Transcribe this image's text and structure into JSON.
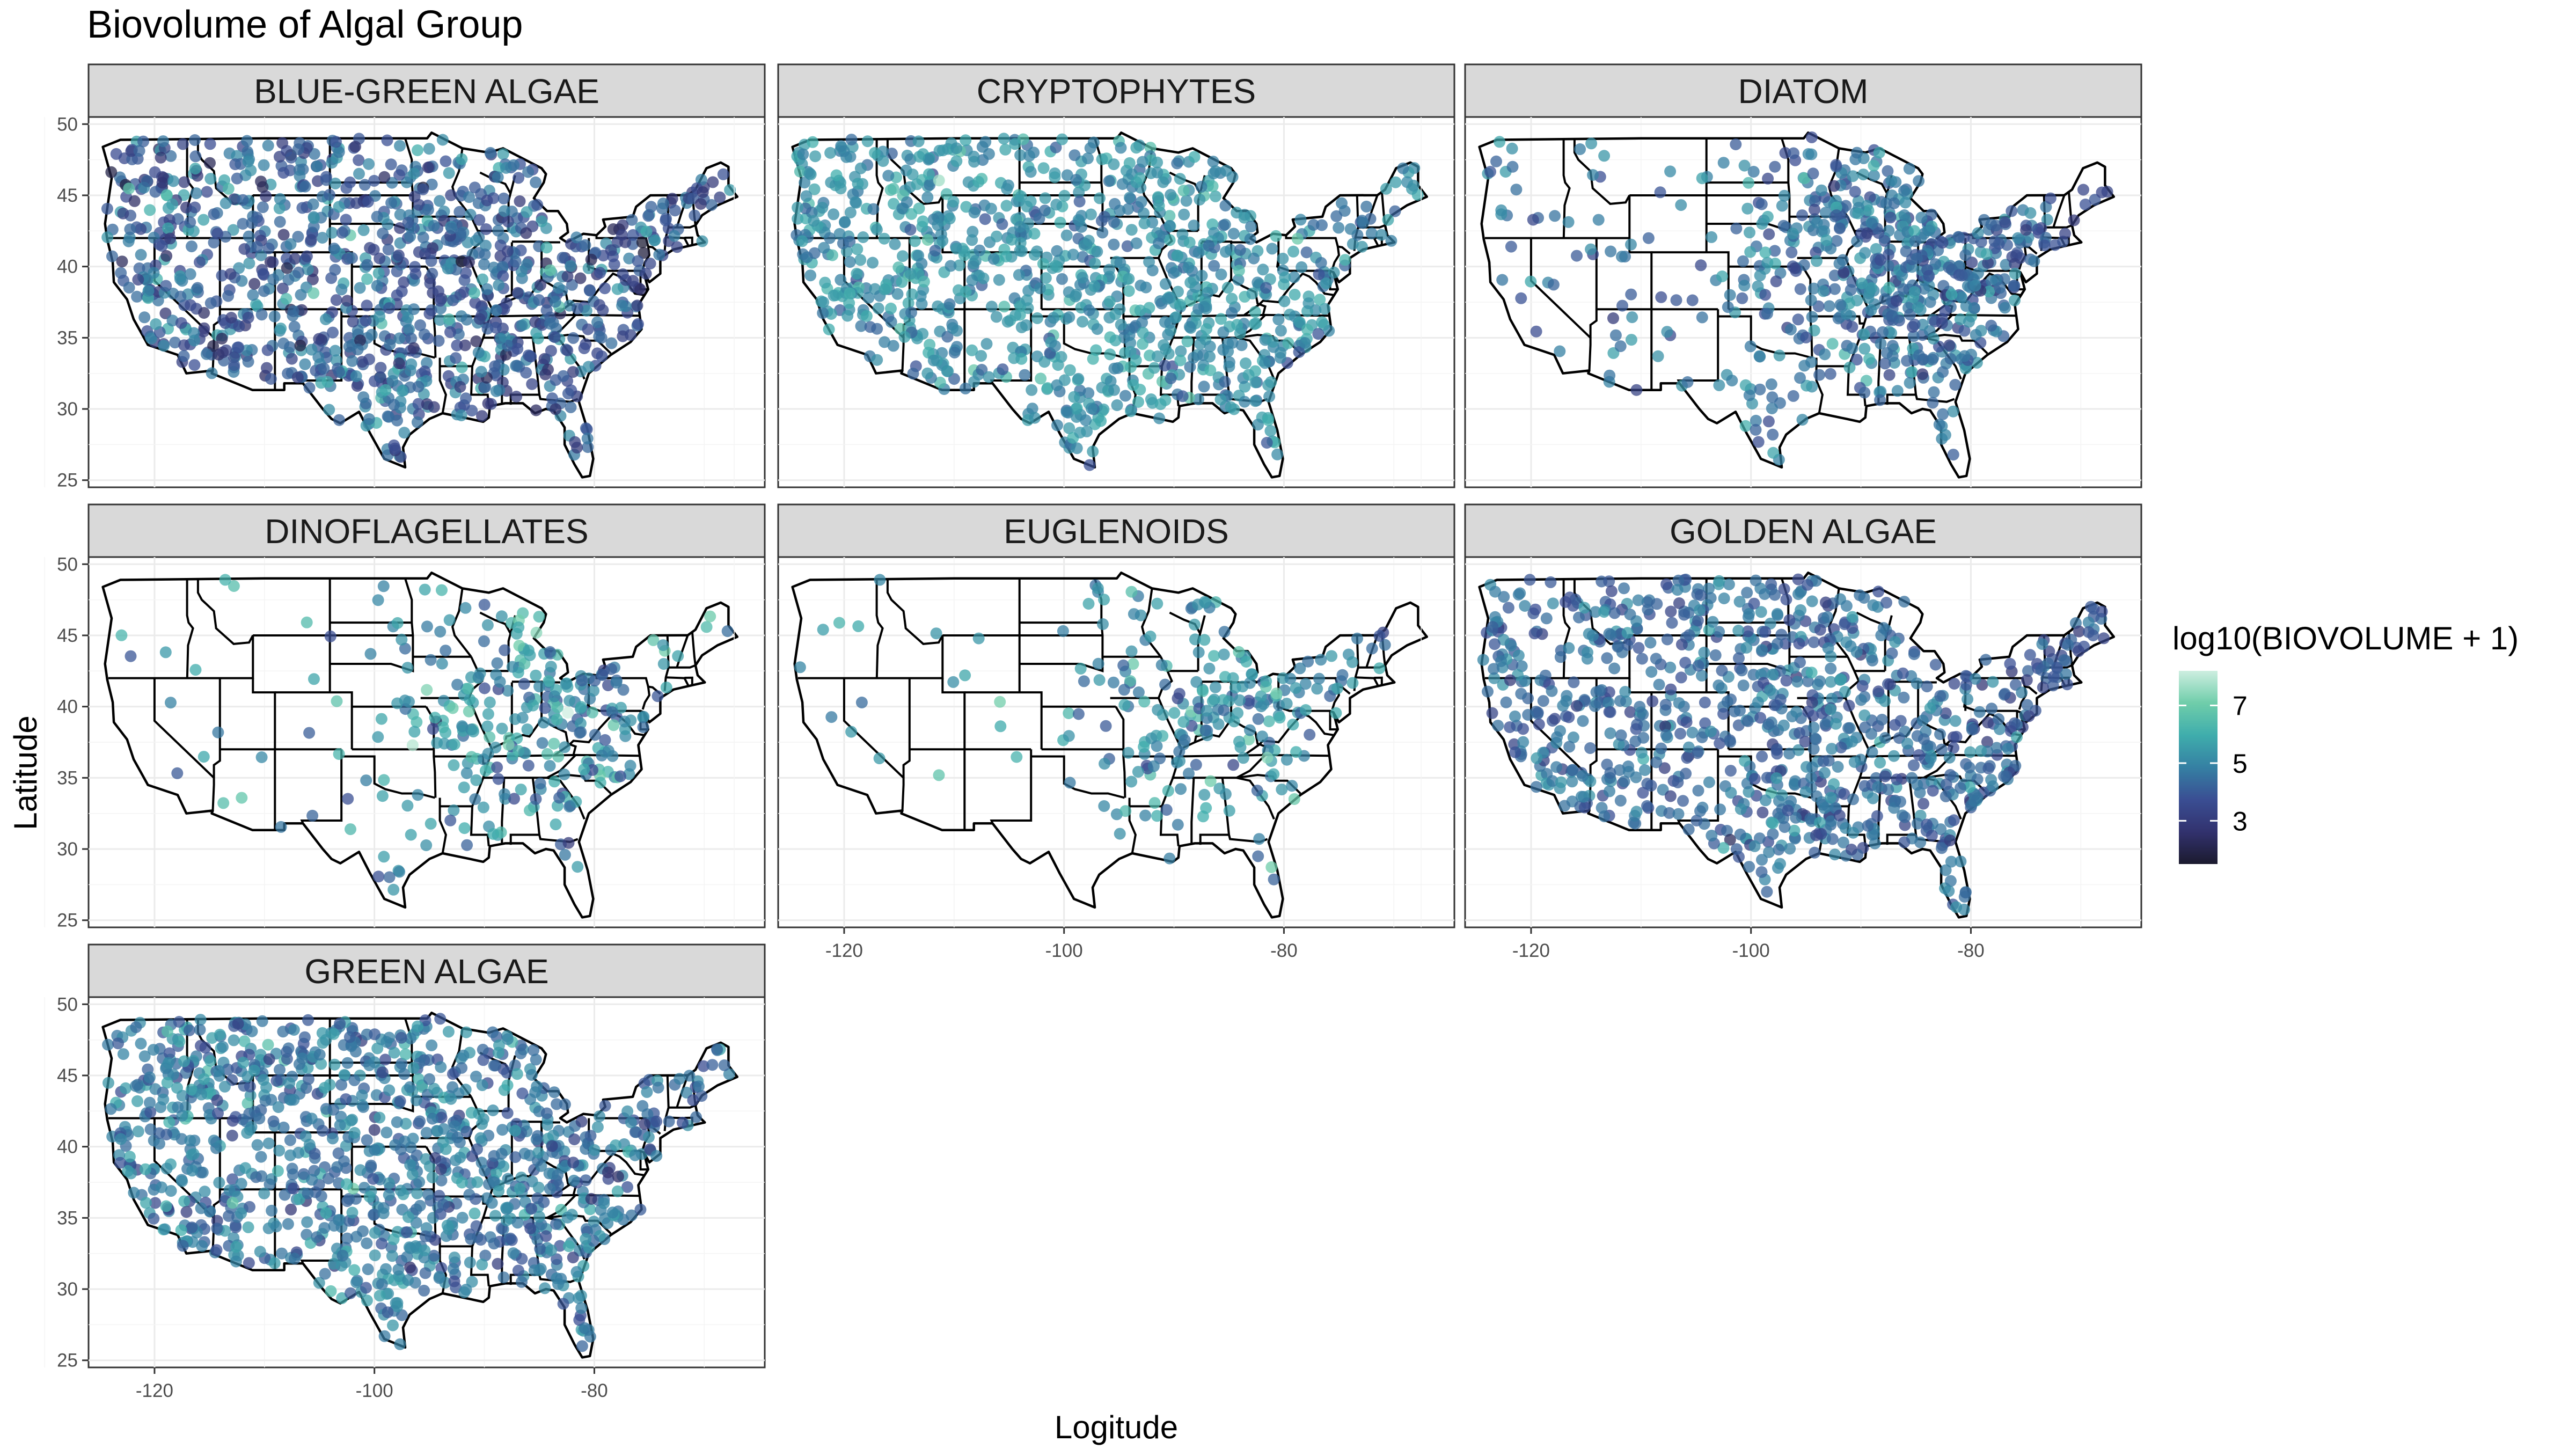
{
  "title": "Biovolume of Algal Group",
  "xlabel": "Logitude",
  "ylabel": "Latitude",
  "legend": {
    "title": "log10(BIOVOLUME + 1)",
    "ticks": [
      "3",
      "5",
      "7"
    ],
    "range": [
      1.5,
      8.2
    ],
    "tick_values": [
      3,
      5,
      7
    ],
    "colors": [
      "#1b1a2e",
      "#32326e",
      "#3a4e93",
      "#3580a3",
      "#3fadac",
      "#6fcdaa",
      "#cdeee0"
    ]
  },
  "chart_data": {
    "type": "scatter",
    "facets": [
      "BLUE-GREEN ALGAE",
      "CRYPTOPHYTES",
      "DIATOM",
      "DINOFLAGELLATES",
      "EUGLENOIDS",
      "GOLDEN ALGAE",
      "GREEN ALGAE"
    ],
    "xlim": [
      -126,
      -64.5
    ],
    "ylim": [
      24.5,
      50.5
    ],
    "x_ticks": [
      -120,
      -100,
      -80
    ],
    "x_tick_labels": [
      "-120",
      "-100",
      "-80"
    ],
    "y_ticks": [
      25,
      30,
      35,
      40,
      45,
      50
    ],
    "y_tick_labels": [
      "25",
      "30",
      "35",
      "40",
      "45",
      "50"
    ],
    "series": [
      {
        "name": "BLUE-GREEN ALGAE",
        "n_points": 1100,
        "density": 1.0,
        "color_mean": 4.2,
        "color_sd": 0.9
      },
      {
        "name": "CRYPTOPHYTES",
        "n_points": 1000,
        "density": 1.0,
        "color_mean": 5.3,
        "color_sd": 0.6
      },
      {
        "name": "DIATOM",
        "n_points": 650,
        "density": 0.85,
        "color_mean": 4.6,
        "color_sd": 0.7
      },
      {
        "name": "DINOFLAGELLATES",
        "n_points": 300,
        "density": 0.45,
        "color_mean": 5.4,
        "color_sd": 0.9
      },
      {
        "name": "EUGLENOIDS",
        "n_points": 240,
        "density": 0.35,
        "color_mean": 5.3,
        "color_sd": 0.8
      },
      {
        "name": "GOLDEN ALGAE",
        "n_points": 950,
        "density": 1.0,
        "color_mean": 4.4,
        "color_sd": 0.6
      },
      {
        "name": "GREEN ALGAE",
        "n_points": 1100,
        "density": 1.0,
        "color_mean": 4.7,
        "color_sd": 0.7
      }
    ]
  }
}
